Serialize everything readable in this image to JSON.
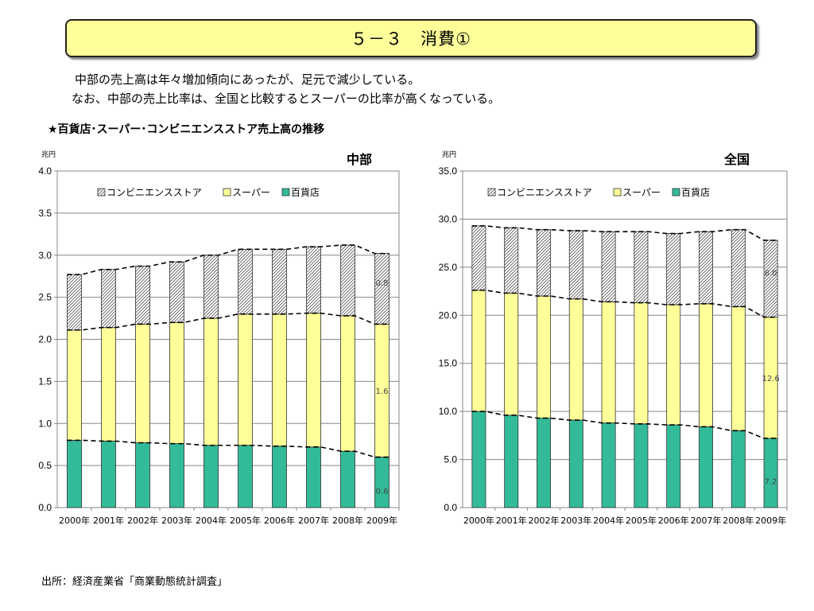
{
  "page": {
    "title": "５－３　消費①",
    "description_line1": "中部の売上高は年々増加傾向にあったが、足元で減少している。",
    "description_line2": "なお、中部の売上比率は、全国と比較するとスーパーの比率が高くなっている。",
    "subtitle": "★百貨店･スーパー･コンビニエンスストア売上高の推移",
    "source": "出所：経済産業省「商業動態統計調査」"
  },
  "colors": {
    "department_store": "#33bb99",
    "supermarket": "#ffff99",
    "convenience_store_hatch": "#555555",
    "title_box": "#ffff99"
  },
  "chart_data": [
    {
      "type": "bar",
      "stacked": true,
      "title": "中部",
      "unit": "兆円",
      "categories": [
        "2000年",
        "2001年",
        "2002年",
        "2003年",
        "2004年",
        "2005年",
        "2006年",
        "2007年",
        "2008年",
        "2009年"
      ],
      "yticks": [
        "0.0",
        "0.5",
        "1.0",
        "1.5",
        "2.0",
        "2.5",
        "3.0",
        "3.5",
        "4.0"
      ],
      "ylim": [
        0,
        4.0
      ],
      "grid": true,
      "legend_position": "top",
      "legend": [
        "コンビニエンスストア",
        "スーパー",
        "百貨店"
      ],
      "series": [
        {
          "name": "百貨店",
          "key": "dept",
          "values": [
            0.8,
            0.79,
            0.77,
            0.76,
            0.74,
            0.74,
            0.73,
            0.72,
            0.67,
            0.6
          ]
        },
        {
          "name": "スーパー",
          "key": "super",
          "values": [
            1.31,
            1.35,
            1.41,
            1.44,
            1.51,
            1.56,
            1.57,
            1.59,
            1.61,
            1.58
          ]
        },
        {
          "name": "コンビニエンスストア",
          "key": "conv",
          "values": [
            0.66,
            0.69,
            0.69,
            0.72,
            0.75,
            0.77,
            0.77,
            0.79,
            0.84,
            0.84
          ]
        }
      ],
      "data_labels": [
        {
          "series": "conv",
          "index": 9,
          "text": "0.8"
        },
        {
          "series": "super",
          "index": 9,
          "text": "1.6"
        },
        {
          "series": "dept",
          "index": 9,
          "text": "0.6"
        }
      ]
    },
    {
      "type": "bar",
      "stacked": true,
      "title": "全国",
      "unit": "兆円",
      "categories": [
        "2000年",
        "2001年",
        "2002年",
        "2003年",
        "2004年",
        "2005年",
        "2006年",
        "2007年",
        "2008年",
        "2009年"
      ],
      "yticks": [
        "0.0",
        "5.0",
        "10.0",
        "15.0",
        "20.0",
        "25.0",
        "30.0",
        "35.0"
      ],
      "ylim": [
        0,
        35.0
      ],
      "grid": true,
      "legend_position": "top",
      "legend": [
        "コンビニエンスストア",
        "スーパー",
        "百貨店"
      ],
      "series": [
        {
          "name": "百貨店",
          "key": "dept",
          "values": [
            10.0,
            9.6,
            9.3,
            9.1,
            8.8,
            8.7,
            8.6,
            8.4,
            8.0,
            7.2
          ]
        },
        {
          "name": "スーパー",
          "key": "super",
          "values": [
            12.6,
            12.7,
            12.7,
            12.6,
            12.6,
            12.6,
            12.5,
            12.8,
            12.9,
            12.6
          ]
        },
        {
          "name": "コンビニエンスストア",
          "key": "conv",
          "values": [
            6.7,
            6.8,
            6.9,
            7.1,
            7.3,
            7.4,
            7.4,
            7.5,
            8.0,
            8.0
          ]
        }
      ],
      "data_labels": [
        {
          "series": "conv",
          "index": 9,
          "text": "8.0"
        },
        {
          "series": "super",
          "index": 9,
          "text": "12.6"
        },
        {
          "series": "dept",
          "index": 9,
          "text": "7.2"
        }
      ]
    }
  ]
}
